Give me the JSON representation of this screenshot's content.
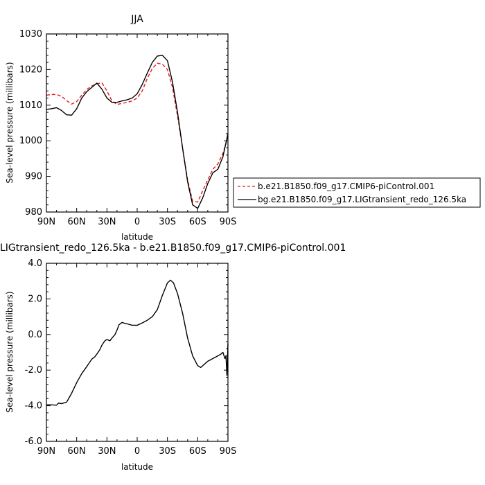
{
  "chart_data": [
    {
      "type": "line",
      "title": "JJA",
      "xlabel": "latitude",
      "ylabel": "Sea-level pressure (millibars)",
      "xlim": [
        -90,
        90
      ],
      "ylim": [
        980,
        1030
      ],
      "x_ticks": [
        -90,
        -60,
        -30,
        0,
        30,
        60,
        90
      ],
      "x_tick_labels": [
        "90N",
        "60N",
        "30N",
        "0",
        "30S",
        "60S",
        "90S"
      ],
      "y_ticks": [
        980,
        990,
        1000,
        1010,
        1020,
        1030
      ],
      "y_tick_labels": [
        "980",
        "990",
        "1000",
        "1010",
        "1020",
        "1030"
      ],
      "legend_position": "right",
      "series": [
        {
          "name": "b.e21.B1850.f09_g17.CMIP6-piControl.001",
          "color": "#e31a1c",
          "dash": "dashed",
          "x": [
            -90,
            -85,
            -80,
            -75,
            -70,
            -65,
            -60,
            -55,
            -50,
            -45,
            -40,
            -35,
            -30,
            -25,
            -20,
            -15,
            -10,
            -5,
            0,
            5,
            10,
            15,
            20,
            25,
            30,
            35,
            40,
            45,
            50,
            55,
            60,
            65,
            70,
            75,
            80,
            85,
            90
          ],
          "y": [
            1012.8,
            1013.0,
            1013.0,
            1012.5,
            1011.3,
            1010.3,
            1011.0,
            1012.8,
            1014.4,
            1015.4,
            1016.0,
            1016.3,
            1014.0,
            1011.2,
            1010.2,
            1010.5,
            1010.8,
            1011.2,
            1012.0,
            1014.0,
            1017.5,
            1020.3,
            1021.8,
            1021.5,
            1020.0,
            1015.0,
            1007.0,
            998.0,
            989.0,
            983.0,
            982.8,
            986.0,
            989.0,
            992.0,
            993.5,
            996.5,
            1001.0
          ]
        },
        {
          "name": "bg.e21.B1850.f09_g17.LIGtransient_redo_126.5ka",
          "color": "#000000",
          "dash": "solid",
          "x": [
            -90,
            -85,
            -80,
            -75,
            -70,
            -65,
            -60,
            -55,
            -50,
            -45,
            -40,
            -35,
            -30,
            -25,
            -20,
            -15,
            -10,
            -5,
            0,
            5,
            10,
            15,
            20,
            25,
            30,
            35,
            40,
            45,
            50,
            55,
            60,
            65,
            70,
            75,
            80,
            85,
            90
          ],
          "y": [
            1008.8,
            1009.0,
            1009.3,
            1008.5,
            1007.3,
            1007.2,
            1009.0,
            1012.0,
            1013.8,
            1015.0,
            1016.2,
            1014.5,
            1012.0,
            1010.8,
            1010.8,
            1011.2,
            1011.5,
            1012.0,
            1013.2,
            1015.8,
            1019.0,
            1022.0,
            1023.8,
            1024.0,
            1022.5,
            1016.5,
            1008.0,
            998.0,
            988.5,
            982.0,
            981.0,
            984.0,
            988.0,
            991.0,
            992.0,
            995.5,
            1002.0
          ]
        }
      ]
    },
    {
      "type": "line",
      "title": "LIGtransient_redo_126.5ka - b.e21.B1850.f09_g17.CMIP6-piControl.001",
      "xlabel": "latitude",
      "ylabel": "Sea-level pressure (millibars)",
      "xlim": [
        -90,
        90
      ],
      "ylim": [
        -6,
        4
      ],
      "x_ticks": [
        -90,
        -60,
        -30,
        0,
        30,
        60,
        90
      ],
      "x_tick_labels": [
        "90N",
        "60N",
        "30N",
        "0",
        "30S",
        "60S",
        "90S"
      ],
      "y_ticks": [
        -6,
        -4,
        -2,
        0,
        2,
        4
      ],
      "y_tick_labels": [
        "-6.0",
        "-4.0",
        "-2.0",
        "0.0",
        "2.0",
        "4.0"
      ],
      "series": [
        {
          "color": "#000000",
          "dash": "solid",
          "x": [
            -90,
            -85,
            -80,
            -78,
            -75,
            -70,
            -67,
            -65,
            -60,
            -55,
            -50,
            -47,
            -45,
            -42,
            -40,
            -37,
            -35,
            -32,
            -30,
            -27,
            -25,
            -22,
            -20,
            -18,
            -15,
            -12,
            -10,
            -5,
            0,
            5,
            10,
            15,
            20,
            25,
            30,
            33,
            36,
            40,
            45,
            50,
            55,
            60,
            63,
            67,
            70,
            75,
            80,
            83,
            85,
            87,
            88,
            89,
            90
          ],
          "y": [
            -3.95,
            -3.95,
            -3.97,
            -3.85,
            -3.88,
            -3.8,
            -3.5,
            -3.3,
            -2.7,
            -2.2,
            -1.8,
            -1.55,
            -1.38,
            -1.25,
            -1.1,
            -0.85,
            -0.6,
            -0.35,
            -0.28,
            -0.35,
            -0.2,
            0.0,
            0.25,
            0.55,
            0.68,
            0.62,
            0.6,
            0.52,
            0.52,
            0.65,
            0.8,
            1.0,
            1.4,
            2.2,
            2.9,
            3.05,
            2.9,
            2.3,
            1.2,
            -0.2,
            -1.2,
            -1.75,
            -1.85,
            -1.65,
            -1.5,
            -1.35,
            -1.2,
            -1.1,
            -1.0,
            -1.35,
            -1.2,
            -2.3,
            -0.5
          ]
        }
      ]
    }
  ]
}
